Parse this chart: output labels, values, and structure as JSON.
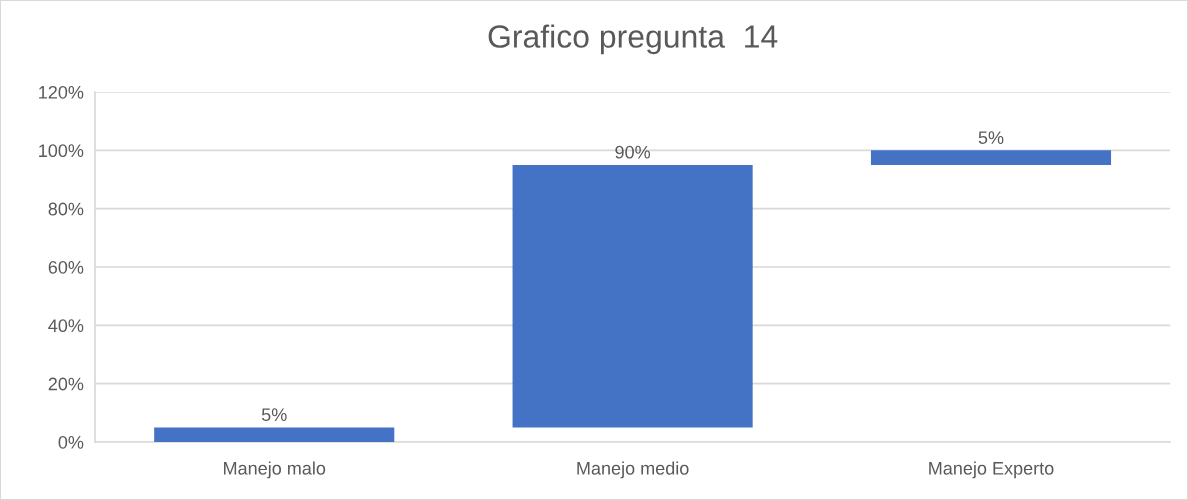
{
  "chart_data": {
    "type": "bar",
    "title": "Grafico pregunta  14",
    "categories": [
      "Manejo malo",
      "Manejo medio",
      "Manejo Experto"
    ],
    "values": [
      5,
      90,
      5
    ],
    "base": [
      0,
      5,
      95
    ],
    "color": "#4472c4",
    "value_labels": [
      "5%",
      "90%",
      "5%"
    ],
    "ylim": [
      0,
      120
    ],
    "yticks": [
      {
        "value": 0,
        "label": "0%"
      },
      {
        "value": 20,
        "label": "20%"
      },
      {
        "value": 40,
        "label": "40%"
      },
      {
        "value": 60,
        "label": "60%"
      },
      {
        "value": 80,
        "label": "80%"
      },
      {
        "value": 100,
        "label": "100%"
      },
      {
        "value": 120,
        "label": "120%"
      }
    ],
    "grid": "y",
    "legend": false
  }
}
